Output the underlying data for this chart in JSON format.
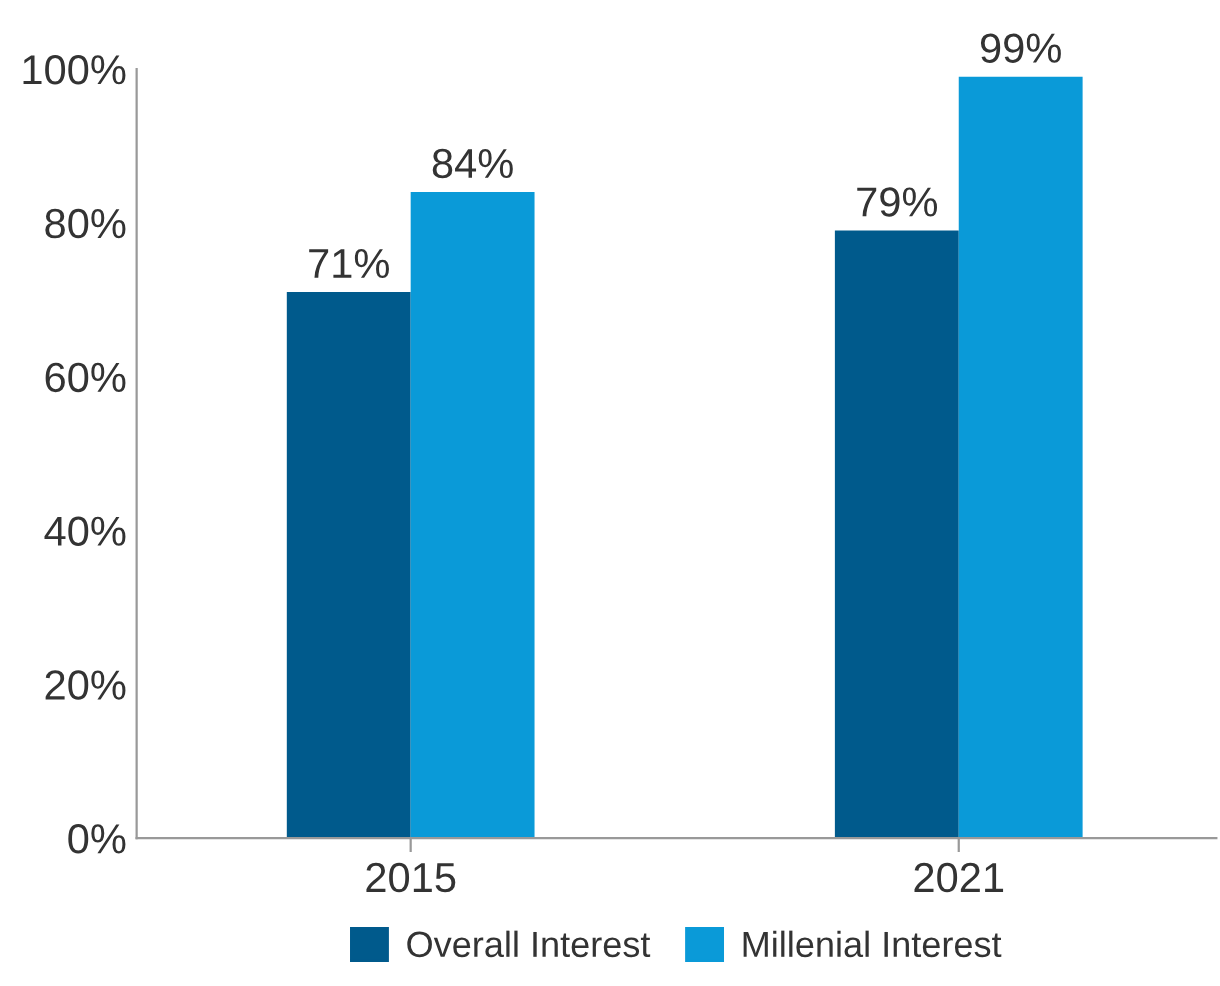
{
  "chart_data": {
    "type": "bar",
    "categories": [
      "2015",
      "2021"
    ],
    "series": [
      {
        "name": "Overall Interest",
        "color": "#005a8c",
        "values": [
          71,
          79
        ],
        "value_labels": [
          "71%",
          "79%"
        ]
      },
      {
        "name": "Millenial Interest",
        "color": "#0a9ad8",
        "values": [
          84,
          99
        ],
        "value_labels": [
          "84%",
          "99%"
        ]
      }
    ],
    "ylim": [
      0,
      100
    ],
    "yticks": [
      {
        "value": 0,
        "label": "0%"
      },
      {
        "value": 20,
        "label": "20%"
      },
      {
        "value": 40,
        "label": "40%"
      },
      {
        "value": 60,
        "label": "60%"
      },
      {
        "value": 80,
        "label": "80%"
      },
      {
        "value": 100,
        "label": "100%"
      }
    ],
    "grid": false,
    "legend": "bottom"
  }
}
